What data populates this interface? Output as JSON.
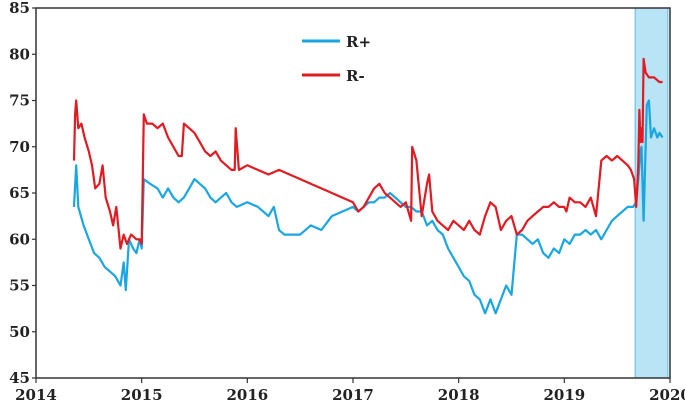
{
  "chart_data": {
    "type": "line",
    "title": "",
    "xlabel": "",
    "ylabel": "",
    "xlim": [
      2014,
      2020
    ],
    "ylim": [
      45,
      85
    ],
    "x_ticks": [
      2014,
      2015,
      2016,
      2017,
      2018,
      2019,
      2020
    ],
    "x_tick_labels": [
      "2014",
      "2015",
      "2016",
      "2017",
      "2018",
      "2019",
      "2020"
    ],
    "y_ticks": [
      45,
      50,
      55,
      60,
      65,
      70,
      75,
      80,
      85
    ],
    "y_tick_labels": [
      "45",
      "50",
      "55",
      "60",
      "65",
      "70",
      "75",
      "80",
      "85"
    ],
    "grid": false,
    "legend_position": "top-center",
    "shaded_region": {
      "x": [
        2019.67,
        2019.98
      ],
      "color": "#b8e4f6"
    },
    "series": [
      {
        "name": "R+",
        "color": "#1aa6e0",
        "x": [
          2014.36,
          2014.38,
          2014.4,
          2014.45,
          2014.5,
          2014.55,
          2014.6,
          2014.65,
          2014.7,
          2014.75,
          2014.8,
          2014.83,
          2014.85,
          2014.88,
          2014.92,
          2014.95,
          2014.98,
          2015.0,
          2015.02,
          2015.08,
          2015.15,
          2015.2,
          2015.25,
          2015.3,
          2015.35,
          2015.4,
          2015.45,
          2015.5,
          2015.55,
          2015.6,
          2015.65,
          2015.7,
          2015.75,
          2015.8,
          2015.85,
          2015.9,
          2016.0,
          2016.1,
          2016.2,
          2016.25,
          2016.3,
          2016.35,
          2016.4,
          2016.5,
          2016.6,
          2016.7,
          2016.8,
          2016.9,
          2017.0,
          2017.05,
          2017.1,
          2017.15,
          2017.2,
          2017.25,
          2017.3,
          2017.35,
          2017.4,
          2017.45,
          2017.5,
          2017.55,
          2017.6,
          2017.65,
          2017.7,
          2017.75,
          2017.8,
          2017.85,
          2017.9,
          2017.95,
          2018.0,
          2018.05,
          2018.1,
          2018.15,
          2018.2,
          2018.25,
          2018.3,
          2018.35,
          2018.4,
          2018.45,
          2018.5,
          2018.55,
          2018.6,
          2018.65,
          2018.7,
          2018.75,
          2018.8,
          2018.85,
          2018.9,
          2018.95,
          2019.0,
          2019.05,
          2019.1,
          2019.15,
          2019.2,
          2019.25,
          2019.3,
          2019.35,
          2019.4,
          2019.45,
          2019.5,
          2019.55,
          2019.6,
          2019.65,
          2019.68,
          2019.7,
          2019.72,
          2019.73,
          2019.75,
          2019.78,
          2019.8,
          2019.82,
          2019.85,
          2019.88,
          2019.9,
          2019.93
        ],
        "values": [
          63.5,
          68.0,
          63.5,
          61.5,
          60.0,
          58.5,
          58.0,
          57.0,
          56.5,
          56.0,
          55.0,
          57.5,
          54.5,
          60.0,
          59.0,
          58.5,
          60.0,
          59.0,
          66.5,
          66.0,
          65.5,
          64.5,
          65.5,
          64.5,
          64.0,
          64.5,
          65.5,
          66.5,
          66.0,
          65.5,
          64.5,
          64.0,
          64.5,
          65.0,
          64.0,
          63.5,
          64.0,
          63.5,
          62.5,
          63.5,
          61.0,
          60.5,
          60.5,
          60.5,
          61.5,
          61.0,
          62.5,
          63.0,
          63.5,
          63.0,
          63.5,
          64.0,
          64.0,
          64.5,
          64.5,
          65.0,
          64.5,
          64.0,
          63.5,
          63.5,
          63.0,
          63.0,
          61.5,
          62.0,
          61.0,
          60.5,
          59.0,
          58.0,
          57.0,
          56.0,
          55.5,
          54.0,
          53.5,
          52.0,
          53.5,
          52.0,
          53.5,
          55.0,
          54.0,
          60.5,
          60.5,
          60.0,
          59.5,
          60.0,
          58.5,
          58.0,
          59.0,
          58.5,
          60.0,
          59.5,
          60.5,
          60.5,
          61.0,
          60.5,
          61.0,
          60.0,
          61.0,
          62.0,
          62.5,
          63.0,
          63.5,
          63.5,
          64.0,
          66.5,
          69.5,
          70.0,
          62.0,
          74.5,
          75.0,
          71.0,
          72.0,
          71.0,
          71.5,
          71.0
        ]
      },
      {
        "name": "R-",
        "color": "#e01b22",
        "x": [
          2014.36,
          2014.37,
          2014.38,
          2014.4,
          2014.43,
          2014.46,
          2014.5,
          2014.53,
          2014.56,
          2014.6,
          2014.63,
          2014.66,
          2014.7,
          2014.73,
          2014.76,
          2014.8,
          2014.83,
          2014.86,
          2014.9,
          2014.95,
          2014.98,
          2015.0,
          2015.02,
          2015.05,
          2015.1,
          2015.15,
          2015.2,
          2015.25,
          2015.3,
          2015.35,
          2015.38,
          2015.4,
          2015.45,
          2015.5,
          2015.55,
          2015.6,
          2015.65,
          2015.7,
          2015.75,
          2015.8,
          2015.85,
          2015.88,
          2015.89,
          2015.92,
          2016.0,
          2016.1,
          2016.2,
          2016.3,
          2016.4,
          2016.5,
          2016.6,
          2016.7,
          2016.8,
          2016.9,
          2017.0,
          2017.05,
          2017.1,
          2017.15,
          2017.2,
          2017.25,
          2017.3,
          2017.35,
          2017.4,
          2017.45,
          2017.5,
          2017.55,
          2017.56,
          2017.6,
          2017.65,
          2017.7,
          2017.72,
          2017.75,
          2017.8,
          2017.85,
          2017.9,
          2017.95,
          2018.0,
          2018.05,
          2018.1,
          2018.15,
          2018.2,
          2018.25,
          2018.3,
          2018.35,
          2018.4,
          2018.45,
          2018.5,
          2018.55,
          2018.6,
          2018.65,
          2018.7,
          2018.75,
          2018.8,
          2018.85,
          2018.9,
          2018.95,
          2019.0,
          2019.02,
          2019.05,
          2019.1,
          2019.15,
          2019.2,
          2019.25,
          2019.3,
          2019.35,
          2019.4,
          2019.45,
          2019.5,
          2019.55,
          2019.6,
          2019.63,
          2019.66,
          2019.68,
          2019.7,
          2019.71,
          2019.72,
          2019.73,
          2019.74,
          2019.75,
          2019.77,
          2019.8,
          2019.85,
          2019.9,
          2019.93
        ],
        "values": [
          68.5,
          73.5,
          75.0,
          72.0,
          72.5,
          71.0,
          69.5,
          68.0,
          65.5,
          66.0,
          68.0,
          64.5,
          63.0,
          61.5,
          63.5,
          59.0,
          60.5,
          59.5,
          60.5,
          60.0,
          60.0,
          59.5,
          73.5,
          72.5,
          72.5,
          72.0,
          72.5,
          71.0,
          70.0,
          69.0,
          69.0,
          72.5,
          72.0,
          71.5,
          70.5,
          69.5,
          69.0,
          69.5,
          68.5,
          68.0,
          67.5,
          67.5,
          72.0,
          67.5,
          68.0,
          67.5,
          67.0,
          67.5,
          67.0,
          66.5,
          66.0,
          65.5,
          65.0,
          64.5,
          64.0,
          63.0,
          63.5,
          64.5,
          65.5,
          66.0,
          65.0,
          64.5,
          64.0,
          63.5,
          64.0,
          62.0,
          70.0,
          68.5,
          62.5,
          66.0,
          67.0,
          63.0,
          62.0,
          61.5,
          61.0,
          62.0,
          61.5,
          61.0,
          62.0,
          61.0,
          60.5,
          62.5,
          64.0,
          63.5,
          61.0,
          62.0,
          62.5,
          60.5,
          61.0,
          62.0,
          62.5,
          63.0,
          63.5,
          63.5,
          64.0,
          63.5,
          63.5,
          63.0,
          64.5,
          64.0,
          64.0,
          63.5,
          64.5,
          62.5,
          68.5,
          69.0,
          68.5,
          69.0,
          68.5,
          68.0,
          67.5,
          66.5,
          63.5,
          68.0,
          74.0,
          70.5,
          72.0,
          70.5,
          79.5,
          78.0,
          77.5,
          77.5,
          77.0,
          77.0
        ]
      }
    ]
  }
}
